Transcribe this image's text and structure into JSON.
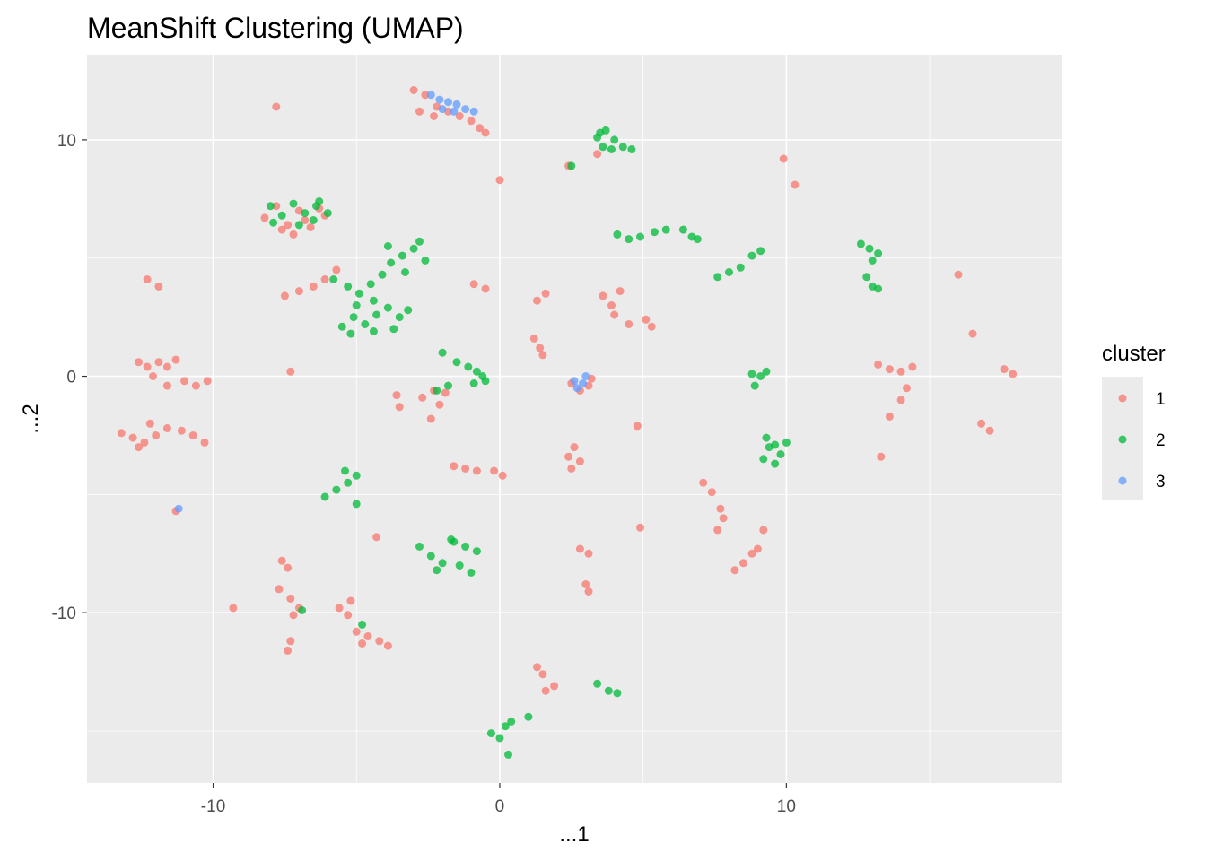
{
  "chart_data": {
    "type": "scatter",
    "title": "MeanShift Clustering (UMAP)",
    "xlabel": "...1",
    "ylabel": "...2",
    "xlim": [
      -14.4,
      19.6
    ],
    "ylim": [
      -17.2,
      13.6
    ],
    "x_ticks": [
      -10,
      0,
      10
    ],
    "y_ticks": [
      -10,
      0,
      10
    ],
    "x_tick_labels": [
      "-10",
      "0",
      "10"
    ],
    "y_tick_labels": [
      "-10",
      "0",
      "10"
    ],
    "grid": true,
    "legend": {
      "title": "cluster",
      "placement": "right",
      "entries": [
        "1",
        "2",
        "3"
      ]
    },
    "series": [
      {
        "name": "1",
        "color": "#F8766D",
        "points": [
          [
            -3.0,
            12.1
          ],
          [
            -2.6,
            11.9
          ],
          [
            -2.2,
            11.4
          ],
          [
            -1.8,
            11.2
          ],
          [
            -1.4,
            11.0
          ],
          [
            -1.0,
            10.8
          ],
          [
            -0.7,
            10.5
          ],
          [
            -0.5,
            10.3
          ],
          [
            -2.8,
            11.2
          ],
          [
            -2.3,
            11.0
          ],
          [
            -7.8,
            11.4
          ],
          [
            0.0,
            8.3
          ],
          [
            2.4,
            8.9
          ],
          [
            3.4,
            9.4
          ],
          [
            9.9,
            9.2
          ],
          [
            10.3,
            8.1
          ],
          [
            -8.2,
            6.7
          ],
          [
            -7.8,
            7.2
          ],
          [
            -7.4,
            6.4
          ],
          [
            -7.0,
            7.0
          ],
          [
            -6.6,
            6.3
          ],
          [
            -6.3,
            7.1
          ],
          [
            -7.2,
            6.0
          ],
          [
            -6.8,
            6.6
          ],
          [
            -6.1,
            6.8
          ],
          [
            -7.6,
            6.2
          ],
          [
            -7.5,
            3.4
          ],
          [
            -7.0,
            3.6
          ],
          [
            -6.5,
            3.8
          ],
          [
            -6.1,
            4.1
          ],
          [
            -5.7,
            4.5
          ],
          [
            -0.9,
            3.9
          ],
          [
            -0.5,
            3.7
          ],
          [
            1.3,
            3.2
          ],
          [
            1.6,
            3.5
          ],
          [
            -12.3,
            4.1
          ],
          [
            -11.9,
            3.8
          ],
          [
            3.6,
            3.4
          ],
          [
            4.2,
            3.6
          ],
          [
            3.9,
            3.0
          ],
          [
            4.0,
            2.6
          ],
          [
            4.5,
            2.2
          ],
          [
            5.3,
            2.1
          ],
          [
            5.1,
            2.4
          ],
          [
            16.0,
            4.3
          ],
          [
            16.5,
            1.8
          ],
          [
            13.2,
            0.5
          ],
          [
            13.6,
            0.3
          ],
          [
            14.0,
            0.2
          ],
          [
            14.4,
            0.4
          ],
          [
            14.2,
            -0.5
          ],
          [
            14.0,
            -1.0
          ],
          [
            13.6,
            -1.7
          ],
          [
            13.3,
            -3.4
          ],
          [
            17.6,
            0.3
          ],
          [
            17.9,
            0.1
          ],
          [
            16.8,
            -2.0
          ],
          [
            17.1,
            -2.3
          ],
          [
            -12.6,
            0.6
          ],
          [
            -12.3,
            0.4
          ],
          [
            -11.9,
            0.6
          ],
          [
            -11.6,
            0.4
          ],
          [
            -11.3,
            0.7
          ],
          [
            -12.1,
            0.0
          ],
          [
            -11.6,
            -0.4
          ],
          [
            -11.0,
            -0.2
          ],
          [
            -10.6,
            -0.4
          ],
          [
            -10.2,
            -0.2
          ],
          [
            -7.3,
            0.2
          ],
          [
            -13.2,
            -2.4
          ],
          [
            -12.8,
            -2.6
          ],
          [
            -12.4,
            -2.8
          ],
          [
            -12.0,
            -2.5
          ],
          [
            -11.6,
            -2.2
          ],
          [
            -11.1,
            -2.3
          ],
          [
            -10.7,
            -2.5
          ],
          [
            -10.3,
            -2.8
          ],
          [
            -12.2,
            -2.0
          ],
          [
            -12.6,
            -3.0
          ],
          [
            -3.6,
            -0.8
          ],
          [
            -3.5,
            -1.3
          ],
          [
            -2.7,
            -0.9
          ],
          [
            -2.3,
            -0.6
          ],
          [
            -2.1,
            -1.2
          ],
          [
            -2.4,
            -1.8
          ],
          [
            -1.9,
            -0.7
          ],
          [
            1.2,
            1.6
          ],
          [
            1.4,
            1.2
          ],
          [
            1.5,
            0.9
          ],
          [
            2.5,
            -0.3
          ],
          [
            2.8,
            -0.6
          ],
          [
            3.1,
            -0.4
          ],
          [
            3.2,
            -0.1
          ],
          [
            4.8,
            -2.1
          ],
          [
            2.4,
            -3.4
          ],
          [
            2.6,
            -3.0
          ],
          [
            2.8,
            -3.6
          ],
          [
            2.5,
            -3.9
          ],
          [
            -1.6,
            -3.8
          ],
          [
            -1.2,
            -3.9
          ],
          [
            -0.8,
            -4.0
          ],
          [
            -0.2,
            -4.0
          ],
          [
            0.1,
            -4.2
          ],
          [
            7.1,
            -4.5
          ],
          [
            7.4,
            -4.9
          ],
          [
            7.7,
            -5.6
          ],
          [
            7.8,
            -6.0
          ],
          [
            7.6,
            -6.5
          ],
          [
            9.2,
            -6.5
          ],
          [
            8.8,
            -7.5
          ],
          [
            8.5,
            -7.9
          ],
          [
            8.2,
            -8.2
          ],
          [
            9.0,
            -7.3
          ],
          [
            4.9,
            -6.4
          ],
          [
            -4.3,
            -6.8
          ],
          [
            2.8,
            -7.3
          ],
          [
            3.1,
            -7.5
          ],
          [
            3.0,
            -8.8
          ],
          [
            3.1,
            -9.1
          ],
          [
            -7.6,
            -7.8
          ],
          [
            -7.4,
            -8.1
          ],
          [
            -7.7,
            -9.0
          ],
          [
            -7.3,
            -9.4
          ],
          [
            -7.0,
            -9.8
          ],
          [
            -7.2,
            -10.1
          ],
          [
            -7.3,
            -11.2
          ],
          [
            -7.4,
            -11.6
          ],
          [
            -9.3,
            -9.8
          ],
          [
            -5.6,
            -9.8
          ],
          [
            -5.3,
            -10.1
          ],
          [
            -5.2,
            -9.5
          ],
          [
            -5.0,
            -10.8
          ],
          [
            -4.6,
            -11.0
          ],
          [
            -4.2,
            -11.2
          ],
          [
            -3.9,
            -11.4
          ],
          [
            -4.8,
            -11.3
          ],
          [
            1.3,
            -12.3
          ],
          [
            1.5,
            -12.6
          ],
          [
            1.6,
            -13.3
          ],
          [
            1.9,
            -13.1
          ],
          [
            -11.3,
            -5.7
          ]
        ]
      },
      {
        "name": "2",
        "color": "#00BA38",
        "points": [
          [
            3.4,
            10.1
          ],
          [
            3.7,
            10.4
          ],
          [
            4.0,
            10.0
          ],
          [
            3.6,
            9.7
          ],
          [
            3.9,
            9.6
          ],
          [
            4.3,
            9.7
          ],
          [
            4.6,
            9.6
          ],
          [
            3.5,
            10.3
          ],
          [
            2.5,
            8.9
          ],
          [
            4.1,
            6.0
          ],
          [
            4.5,
            5.8
          ],
          [
            4.9,
            5.9
          ],
          [
            5.4,
            6.1
          ],
          [
            5.8,
            6.2
          ],
          [
            6.4,
            6.2
          ],
          [
            6.7,
            5.9
          ],
          [
            6.9,
            5.8
          ],
          [
            -8.0,
            7.2
          ],
          [
            -7.6,
            6.8
          ],
          [
            -7.2,
            7.3
          ],
          [
            -6.8,
            6.9
          ],
          [
            -6.4,
            7.2
          ],
          [
            -6.0,
            6.9
          ],
          [
            -7.9,
            6.5
          ],
          [
            -7.0,
            6.4
          ],
          [
            -6.5,
            6.6
          ],
          [
            -6.3,
            7.4
          ],
          [
            -5.8,
            4.1
          ],
          [
            -5.3,
            3.8
          ],
          [
            -4.9,
            3.5
          ],
          [
            -4.5,
            3.9
          ],
          [
            -4.1,
            4.3
          ],
          [
            -3.8,
            4.8
          ],
          [
            -3.4,
            5.1
          ],
          [
            -3.0,
            5.4
          ],
          [
            -2.6,
            4.9
          ],
          [
            -3.3,
            4.4
          ],
          [
            -3.9,
            5.5
          ],
          [
            -2.8,
            5.7
          ],
          [
            -4.4,
            3.2
          ],
          [
            -5.0,
            3.0
          ],
          [
            -5.5,
            2.1
          ],
          [
            -5.1,
            2.5
          ],
          [
            -4.7,
            2.2
          ],
          [
            -4.3,
            2.6
          ],
          [
            -3.9,
            2.9
          ],
          [
            -3.5,
            2.5
          ],
          [
            -3.7,
            2.0
          ],
          [
            -4.4,
            1.9
          ],
          [
            -5.2,
            1.8
          ],
          [
            -3.2,
            2.8
          ],
          [
            7.6,
            4.2
          ],
          [
            8.0,
            4.4
          ],
          [
            8.4,
            4.6
          ],
          [
            8.8,
            5.1
          ],
          [
            9.1,
            5.3
          ],
          [
            12.6,
            5.6
          ],
          [
            12.9,
            5.4
          ],
          [
            13.2,
            5.2
          ],
          [
            13.0,
            4.9
          ],
          [
            12.8,
            4.2
          ],
          [
            13.0,
            3.8
          ],
          [
            13.2,
            3.7
          ],
          [
            -2.0,
            1.0
          ],
          [
            -1.5,
            0.6
          ],
          [
            -1.1,
            0.4
          ],
          [
            -0.8,
            0.2
          ],
          [
            -0.6,
            0.0
          ],
          [
            -0.9,
            -0.3
          ],
          [
            -0.5,
            -0.2
          ],
          [
            -1.8,
            -0.4
          ],
          [
            -2.2,
            -0.6
          ],
          [
            8.8,
            0.1
          ],
          [
            9.1,
            0.0
          ],
          [
            9.3,
            0.2
          ],
          [
            8.9,
            -0.4
          ],
          [
            9.3,
            -2.6
          ],
          [
            9.6,
            -2.9
          ],
          [
            9.8,
            -3.3
          ],
          [
            9.6,
            -3.7
          ],
          [
            9.2,
            -3.5
          ],
          [
            9.4,
            -3.0
          ],
          [
            10.0,
            -2.8
          ],
          [
            -6.1,
            -5.1
          ],
          [
            -5.7,
            -4.8
          ],
          [
            -5.3,
            -4.5
          ],
          [
            -5.0,
            -4.2
          ],
          [
            -5.4,
            -4.0
          ],
          [
            -5.0,
            -5.4
          ],
          [
            -2.8,
            -7.2
          ],
          [
            -2.4,
            -7.6
          ],
          [
            -2.0,
            -7.9
          ],
          [
            -1.6,
            -7.0
          ],
          [
            -1.2,
            -7.2
          ],
          [
            -0.8,
            -7.4
          ],
          [
            -1.0,
            -8.3
          ],
          [
            -1.4,
            -8.0
          ],
          [
            -2.2,
            -8.2
          ],
          [
            -1.7,
            -6.9
          ],
          [
            -6.9,
            -9.9
          ],
          [
            -4.8,
            -10.5
          ],
          [
            3.4,
            -13.0
          ],
          [
            3.8,
            -13.3
          ],
          [
            4.1,
            -13.4
          ],
          [
            -0.3,
            -15.1
          ],
          [
            0.0,
            -15.3
          ],
          [
            0.2,
            -14.8
          ],
          [
            0.4,
            -14.6
          ],
          [
            1.0,
            -14.4
          ],
          [
            0.3,
            -16.0
          ]
        ]
      },
      {
        "name": "3",
        "color": "#619CFF",
        "points": [
          [
            -2.4,
            11.9
          ],
          [
            -2.1,
            11.7
          ],
          [
            -1.8,
            11.6
          ],
          [
            -1.5,
            11.5
          ],
          [
            -1.2,
            11.3
          ],
          [
            -0.9,
            11.2
          ],
          [
            -2.0,
            11.3
          ],
          [
            -1.6,
            11.2
          ],
          [
            2.6,
            -0.2
          ],
          [
            2.9,
            -0.3
          ],
          [
            2.7,
            -0.5
          ],
          [
            3.0,
            0.0
          ],
          [
            -11.2,
            -5.6
          ]
        ]
      }
    ]
  }
}
